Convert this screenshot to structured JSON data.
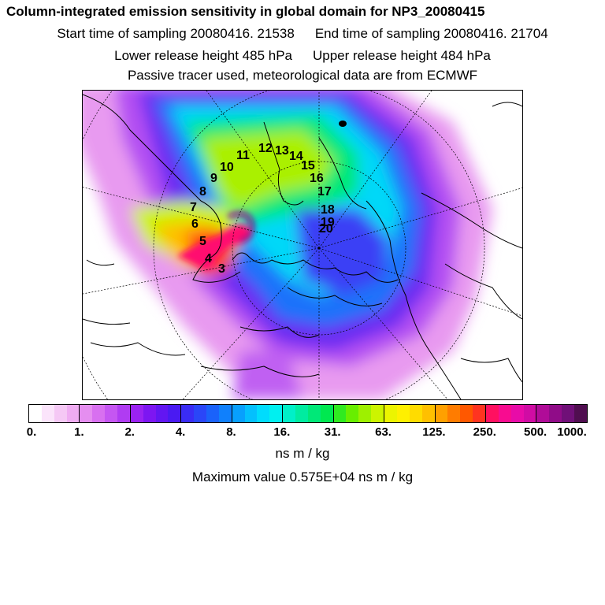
{
  "title": "Column-integrated emission sensitivity in global domain for NP3_20080415",
  "start_time": "Start time of sampling 20080416. 21538",
  "end_time": "End time of sampling 20080416. 21704",
  "lower_height": "Lower release height  485 hPa",
  "upper_height": "Upper release height  484 hPa",
  "tracer_note": "Passive tracer used, meteorological data are from ECMWF",
  "colorbar": {
    "colors": [
      "#ffffff",
      "#fbe4fb",
      "#f5c8f5",
      "#efacf2",
      "#e58ef0",
      "#d870f0",
      "#c556f2",
      "#b03cf2",
      "#9a22f2",
      "#7d16f2",
      "#6216f2",
      "#4a1af2",
      "#3a2cf5",
      "#2a46f8",
      "#1a62fa",
      "#1080fc",
      "#08a0fd",
      "#04c0fd",
      "#00dcfd",
      "#00f0f0",
      "#00f0c8",
      "#00eca0",
      "#00e878",
      "#00e850",
      "#30ea20",
      "#68ee00",
      "#9ef000",
      "#ccf400",
      "#ecf400",
      "#fff000",
      "#ffdc00",
      "#ffc000",
      "#ffa000",
      "#ff7c00",
      "#ff5800",
      "#ff3420",
      "#ff1060",
      "#f80c90",
      "#e80ca8",
      "#d00ca4",
      "#b00c98",
      "#900c88",
      "#701078",
      "#500e50"
    ],
    "tick_labels": [
      "0.",
      "1.",
      "2.",
      "4.",
      "8.",
      "16.",
      "31.",
      "63.",
      "125.",
      "250.",
      "500.",
      "1000."
    ],
    "units": "ns m / kg"
  },
  "max_value": "Maximum value  0.575E+04 ns m / kg",
  "map_labels": [
    "3",
    "4",
    "5",
    "6",
    "7",
    "8",
    "9",
    "10",
    "11",
    "12",
    "13",
    "14",
    "15",
    "16",
    "17",
    "18",
    "19",
    "20"
  ]
}
